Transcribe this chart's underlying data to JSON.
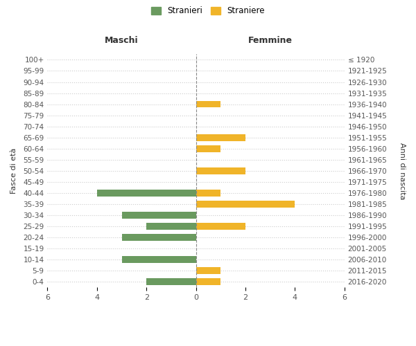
{
  "age_groups": [
    "100+",
    "95-99",
    "90-94",
    "85-89",
    "80-84",
    "75-79",
    "70-74",
    "65-69",
    "60-64",
    "55-59",
    "50-54",
    "45-49",
    "40-44",
    "35-39",
    "30-34",
    "25-29",
    "20-24",
    "15-19",
    "10-14",
    "5-9",
    "0-4"
  ],
  "birth_years": [
    "≤ 1920",
    "1921-1925",
    "1926-1930",
    "1931-1935",
    "1936-1940",
    "1941-1945",
    "1946-1950",
    "1951-1955",
    "1956-1960",
    "1961-1965",
    "1966-1970",
    "1971-1975",
    "1976-1980",
    "1981-1985",
    "1986-1990",
    "1991-1995",
    "1996-2000",
    "2001-2005",
    "2006-2010",
    "2011-2015",
    "2016-2020"
  ],
  "males": [
    0,
    0,
    0,
    0,
    0,
    0,
    0,
    0,
    0,
    0,
    0,
    0,
    4,
    0,
    3,
    2,
    3,
    0,
    3,
    0,
    2
  ],
  "females": [
    0,
    0,
    0,
    0,
    1,
    0,
    0,
    2,
    1,
    0,
    2,
    0,
    1,
    4,
    0,
    2,
    0,
    0,
    0,
    1,
    1
  ],
  "male_color": "#6a9a5f",
  "female_color": "#f0b429",
  "left_axis_label": "Fasce di età",
  "right_axis_label": "Anni di nascita",
  "left_col_label": "Maschi",
  "right_col_label": "Femmine",
  "legend_stranieri": "Stranieri",
  "legend_straniere": "Straniere",
  "xlim": 6,
  "background_color": "#ffffff",
  "grid_color": "#cccccc"
}
